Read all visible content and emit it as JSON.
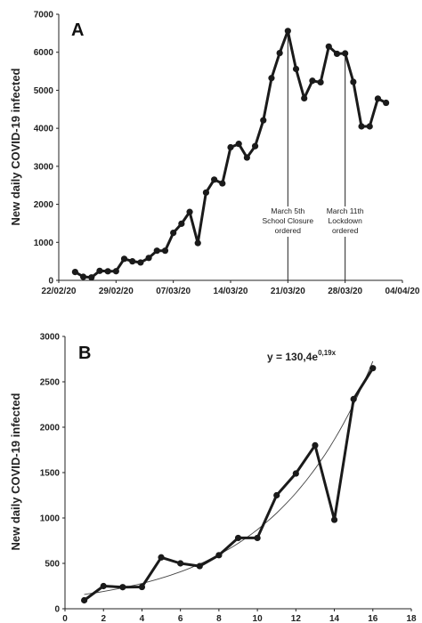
{
  "chart_data": [
    {
      "type": "line",
      "panel_label": "A",
      "title": "",
      "xlabel": "",
      "ylabel": "New daily COVID-19 infected",
      "ylim": [
        0,
        7000
      ],
      "yticks": [
        "0",
        "1000",
        "2000",
        "3000",
        "4000",
        "5000",
        "6000",
        "7000"
      ],
      "xticks": [
        "22/02/20",
        "29/02/20",
        "07/03/20",
        "14/03/20",
        "21/03/20",
        "28/03/20",
        "04/04/20"
      ],
      "xlim_days": [
        0,
        42
      ],
      "grid": false,
      "series": [
        {
          "values": [
            [
              2,
              220
            ],
            [
              3,
              93
            ],
            [
              4,
              78
            ],
            [
              5,
              250
            ],
            [
              6,
              238
            ],
            [
              7,
              240
            ],
            [
              8,
              566
            ],
            [
              9,
              500
            ],
            [
              10,
              470
            ],
            [
              11,
              590
            ],
            [
              12,
              780
            ],
            [
              13,
              780
            ],
            [
              14,
              1250
            ],
            [
              15,
              1490
            ],
            [
              16,
              1800
            ],
            [
              17,
              980
            ],
            [
              18,
              2310
            ],
            [
              19,
              2650
            ],
            [
              20,
              2550
            ],
            [
              21,
              3500
            ],
            [
              22,
              3590
            ],
            [
              23,
              3230
            ],
            [
              24,
              3530
            ],
            [
              25,
              4210
            ],
            [
              26,
              5320
            ],
            [
              27,
              5980
            ],
            [
              28,
              6560
            ],
            [
              29,
              5560
            ],
            [
              30,
              4790
            ],
            [
              31,
              5250
            ],
            [
              32,
              5210
            ],
            [
              33,
              6150
            ],
            [
              34,
              5960
            ],
            [
              35,
              5970
            ],
            [
              36,
              5220
            ],
            [
              37,
              4050
            ],
            [
              38,
              4050
            ],
            [
              39,
              4780
            ],
            [
              40,
              4670
            ]
          ]
        }
      ],
      "annotations": [
        {
          "day": 28,
          "lines": [
            "March 5th",
            "School Closure",
            "ordered"
          ]
        },
        {
          "day": 35,
          "lines": [
            "March 11th",
            "Lockdown",
            "ordered"
          ]
        }
      ]
    },
    {
      "type": "line",
      "panel_label": "B",
      "title": "",
      "xlabel": "",
      "ylabel": "New daily COVID-19 infected",
      "xlim": [
        0,
        18
      ],
      "ylim": [
        0,
        3000
      ],
      "xticks": [
        "0",
        "2",
        "4",
        "6",
        "8",
        "10",
        "12",
        "14",
        "16",
        "18"
      ],
      "yticks": [
        "0",
        "500",
        "1000",
        "1500",
        "2000",
        "2500",
        "3000"
      ],
      "grid": false,
      "series": [
        {
          "x": [
            1,
            2,
            3,
            4,
            5,
            6,
            7,
            8,
            9,
            10,
            11,
            12,
            13,
            14,
            15,
            16
          ],
          "values": [
            93,
            250,
            238,
            240,
            566,
            500,
            470,
            590,
            780,
            780,
            1250,
            1490,
            1800,
            980,
            2310,
            2650
          ]
        }
      ],
      "fit": {
        "equation_base": "y = 130,4e",
        "equation_exp": "0,19x",
        "a": 130.4,
        "b": 0.19,
        "x_range": [
          1,
          16
        ]
      }
    }
  ]
}
